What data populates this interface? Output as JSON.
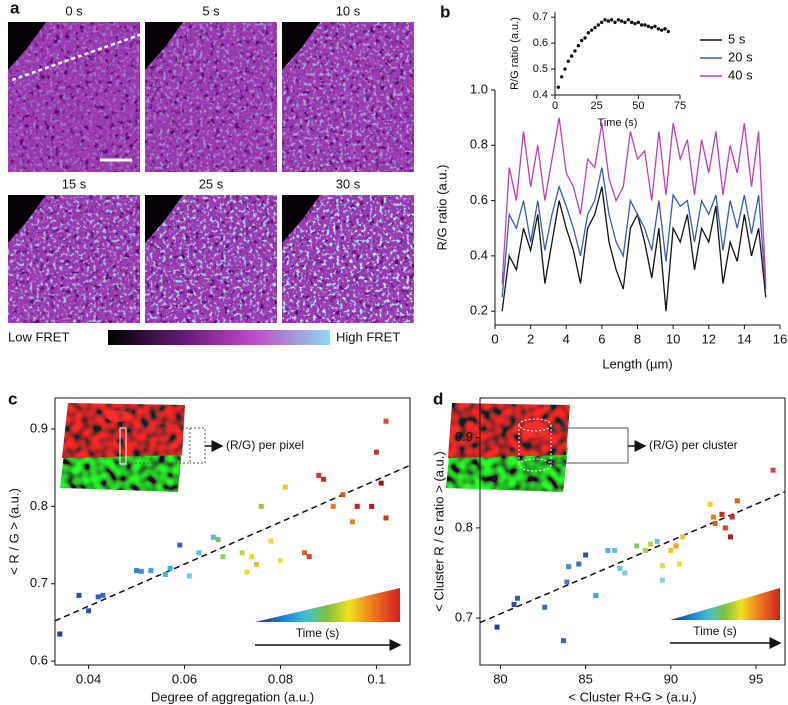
{
  "panel_a": {
    "label": "a",
    "frames": [
      "0 s",
      "5 s",
      "10 s",
      "15 s",
      "25 s",
      "30 s"
    ],
    "colorbar": [
      "Low FRET",
      "High FRET"
    ]
  },
  "chart_data": [
    {
      "panel": "b",
      "type": "line",
      "xlabel": "Length (µm)",
      "ylabel": "R/G ratio (a.u.)",
      "legend": "upper right",
      "xlim": [
        0,
        16
      ],
      "ylim": [
        0.15,
        1.0
      ],
      "xticks": [
        0,
        2,
        4,
        6,
        8,
        10,
        12,
        14,
        16
      ],
      "yticks": [
        0.2,
        0.4,
        0.6,
        0.8,
        {
          "value": 1,
          "label": "1.0"
        }
      ],
      "x": [
        0.4,
        0.8,
        1.2,
        1.6,
        2,
        2.4,
        2.8,
        3.2,
        3.6,
        4,
        4.4,
        4.8,
        5.2,
        5.6,
        6,
        6.4,
        6.8,
        7.2,
        7.6,
        8,
        8.4,
        8.8,
        9.2,
        9.6,
        10,
        10.4,
        10.8,
        11.2,
        11.6,
        12,
        12.4,
        12.8,
        13.2,
        13.6,
        14,
        14.4,
        14.8,
        15.2
      ],
      "series": [
        {
          "name": "5 s",
          "color": "#111111",
          "values": [
            0.2,
            0.4,
            0.35,
            0.5,
            0.42,
            0.55,
            0.3,
            0.45,
            0.6,
            0.5,
            0.42,
            0.3,
            0.5,
            0.55,
            0.65,
            0.45,
            0.35,
            0.28,
            0.5,
            0.55,
            0.45,
            0.32,
            0.5,
            0.2,
            0.5,
            0.45,
            0.55,
            0.35,
            0.5,
            0.45,
            0.58,
            0.3,
            0.45,
            0.38,
            0.55,
            0.4,
            0.5,
            0.25
          ]
        },
        {
          "name": "20 s",
          "color": "#3a5bb0",
          "values": [
            0.25,
            0.55,
            0.5,
            0.6,
            0.45,
            0.6,
            0.42,
            0.55,
            0.65,
            0.58,
            0.5,
            0.4,
            0.55,
            0.6,
            0.72,
            0.55,
            0.45,
            0.4,
            0.6,
            0.55,
            0.5,
            0.42,
            0.6,
            0.38,
            0.62,
            0.58,
            0.6,
            0.45,
            0.6,
            0.55,
            0.62,
            0.42,
            0.6,
            0.5,
            0.62,
            0.48,
            0.62,
            0.28
          ]
        },
        {
          "name": "40 s",
          "color": "#b545b5",
          "values": [
            0.3,
            0.72,
            0.6,
            0.85,
            0.65,
            0.8,
            0.6,
            0.75,
            0.9,
            0.7,
            0.65,
            0.55,
            0.75,
            0.72,
            0.88,
            0.68,
            0.6,
            0.65,
            0.85,
            0.75,
            0.78,
            0.6,
            0.85,
            0.62,
            0.88,
            0.75,
            0.82,
            0.62,
            0.82,
            0.7,
            0.85,
            0.62,
            0.8,
            0.7,
            0.88,
            0.65,
            0.85,
            0.3
          ]
        }
      ]
    },
    {
      "type": "scatter",
      "xlabel": "Time (s)",
      "ylabel": "R/G ratio (a.u.)",
      "color": "#111111",
      "xlim": [
        0,
        75
      ],
      "ylim": [
        0.4,
        0.72
      ],
      "xticks": [
        0,
        25,
        50,
        75
      ],
      "yticks": [
        0.4,
        0.5,
        0.6,
        0.7
      ],
      "x": [
        2,
        4,
        6,
        8,
        10,
        12,
        14,
        16,
        18,
        20,
        22,
        24,
        26,
        28,
        30,
        32,
        34,
        36,
        38,
        40,
        42,
        44,
        46,
        48,
        50,
        52,
        54,
        56,
        58,
        60,
        62,
        64,
        66,
        68
      ],
      "values": [
        0.43,
        0.47,
        0.5,
        0.53,
        0.55,
        0.57,
        0.59,
        0.61,
        0.62,
        0.64,
        0.65,
        0.66,
        0.67,
        0.68,
        0.69,
        0.685,
        0.69,
        0.68,
        0.69,
        0.685,
        0.68,
        0.69,
        0.68,
        0.675,
        0.68,
        0.67,
        0.67,
        0.665,
        0.66,
        0.665,
        0.655,
        0.65,
        0.655,
        0.645
      ]
    },
    {
      "panel": "c",
      "type": "scatter",
      "xlabel": "Degree of aggregation (a.u.)",
      "ylabel": "< R / G > (a.u.)",
      "annotation": "(R/G) per pixel",
      "colorbar_label": "Time (s)",
      "xlim": [
        0.033,
        0.107
      ],
      "ylim": [
        0.595,
        0.94
      ],
      "xticks": [
        0.04,
        0.06,
        0.08,
        0.1
      ],
      "yticks": [
        0.6,
        0.7,
        0.8,
        0.9
      ],
      "x": [
        0.034,
        0.038,
        0.04,
        0.042,
        0.043,
        0.05,
        0.051,
        0.053,
        0.056,
        0.057,
        0.059,
        0.061,
        0.063,
        0.066,
        0.067,
        0.068,
        0.072,
        0.073,
        0.074,
        0.075,
        0.076,
        0.078,
        0.08,
        0.081,
        0.085,
        0.086,
        0.088,
        0.089,
        0.091,
        0.093,
        0.095,
        0.096,
        0.099,
        0.1,
        0.101,
        0.102,
        0.102
      ],
      "values": [
        0.635,
        0.685,
        0.665,
        0.683,
        0.685,
        0.717,
        0.716,
        0.717,
        0.712,
        0.72,
        0.75,
        0.71,
        0.74,
        0.76,
        0.757,
        0.735,
        0.74,
        0.715,
        0.735,
        0.725,
        0.8,
        0.755,
        0.73,
        0.825,
        0.74,
        0.735,
        0.84,
        0.835,
        0.8,
        0.815,
        0.78,
        0.8,
        0.8,
        0.87,
        0.83,
        0.91,
        0.785
      ],
      "colors": [
        "#2b3a9b",
        "#2b4aa0",
        "#3050b0",
        "#3060b8",
        "#3a6ac0",
        "#3a80c8",
        "#4090d0",
        "#40a0d8",
        "#50b0d8",
        "#3ab0e0",
        "#4060c0",
        "#70c8d0",
        "#60c0e0",
        "#5ab0e0",
        "#80c060",
        "#a0d060",
        "#c0d040",
        "#e8e020",
        "#f0d020",
        "#f0c020",
        "#a0c040",
        "#e0e040",
        "#f0e040",
        "#f0c020",
        "#e06020",
        "#e04020",
        "#d03030",
        "#c03020",
        "#e08020",
        "#d06020",
        "#e08030",
        "#c82020",
        "#a02020",
        "#d03020",
        "#a01818",
        "#e04030",
        "#c04020"
      ],
      "fit": {
        "x": [
          0.033,
          0.107
        ],
        "y": [
          0.652,
          0.853
        ]
      }
    },
    {
      "panel": "d",
      "type": "scatter",
      "xlabel": "< Cluster R+G > (a.u.)",
      "ylabel": "< Cluster R / G ratio > (a.u.)",
      "annotation": "(R/G) per cluster",
      "colorbar_label": "Time (s)",
      "xlim": [
        78.8,
        96.7
      ],
      "ylim": [
        0.648,
        0.944
      ],
      "xticks": [
        80,
        85,
        90,
        95
      ],
      "yticks": [
        0.7,
        0.8,
        0.9
      ],
      "x": [
        79.8,
        80.8,
        81.0,
        82.6,
        83.7,
        83.9,
        84.0,
        84.6,
        85.0,
        85.6,
        86.3,
        86.7,
        87.0,
        87.3,
        88.0,
        88.5,
        88.8,
        89.2,
        89.5,
        89.5,
        90.0,
        90.3,
        90.5,
        90.7,
        92.3,
        92.5,
        92.6,
        93.0,
        93.2,
        93.5,
        93.6,
        93.9,
        96.0
      ],
      "values": [
        0.69,
        0.715,
        0.722,
        0.712,
        0.675,
        0.74,
        0.757,
        0.76,
        0.77,
        0.725,
        0.775,
        0.775,
        0.755,
        0.75,
        0.78,
        0.775,
        0.782,
        0.785,
        0.742,
        0.758,
        0.775,
        0.78,
        0.76,
        0.79,
        0.826,
        0.812,
        0.805,
        0.815,
        0.8,
        0.79,
        0.812,
        0.83,
        0.864
      ],
      "colors": [
        "#2b3a9b",
        "#3050b0",
        "#3060b8",
        "#3a6ac0",
        "#4060b0",
        "#3a80c8",
        "#4090d0",
        "#3a70c0",
        "#3050b0",
        "#40a0d8",
        "#50b0e0",
        "#60c0e0",
        "#70c8d0",
        "#80d0c0",
        "#90c060",
        "#a0d060",
        "#c0d040",
        "#70c0e0",
        "#80d0e0",
        "#d0e040",
        "#f0c020",
        "#f0a020",
        "#e0e040",
        "#f0c040",
        "#f0d020",
        "#e08020",
        "#d06020",
        "#c83020",
        "#e04020",
        "#a02020",
        "#d03020",
        "#e06020",
        "#e04030"
      ],
      "fit": {
        "x": [
          78.8,
          96.7
        ],
        "y": [
          0.695,
          0.84
        ]
      }
    }
  ]
}
